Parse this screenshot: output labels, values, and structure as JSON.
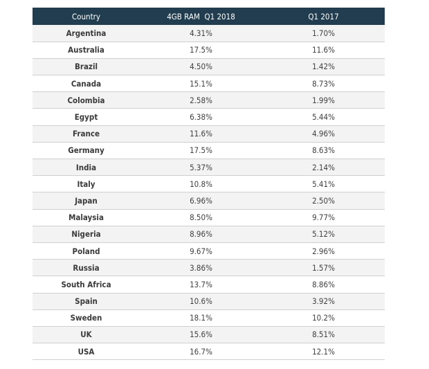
{
  "chart_data": {
    "type": "table",
    "columns": [
      "Country",
      "4GB RAM  Q1 2018",
      "Q1 2017"
    ],
    "rows": [
      [
        "Argentina",
        "4.31%",
        "1.70%"
      ],
      [
        "Australia",
        "17.5%",
        "11.6%"
      ],
      [
        "Brazil",
        "4.50%",
        "1.42%"
      ],
      [
        "Canada",
        "15.1%",
        "8.73%"
      ],
      [
        "Colombia",
        "2.58%",
        "1.99%"
      ],
      [
        "Egypt",
        "6.38%",
        "5.44%"
      ],
      [
        "France",
        "11.6%",
        "4.96%"
      ],
      [
        "Germany",
        "17.5%",
        "8.63%"
      ],
      [
        "India",
        "5.37%",
        "2.14%"
      ],
      [
        "Italy",
        "10.8%",
        "5.41%"
      ],
      [
        "Japan",
        "6.96%",
        "2.50%"
      ],
      [
        "Malaysia",
        "8.50%",
        "9.77%"
      ],
      [
        "Nigeria",
        "8.96%",
        "5.12%"
      ],
      [
        "Poland",
        "9.67%",
        "2.96%"
      ],
      [
        "Russia",
        "3.86%",
        "1.57%"
      ],
      [
        "South Africa",
        "13.7%",
        "8.86%"
      ],
      [
        "Spain",
        "10.6%",
        "3.92%"
      ],
      [
        "Sweden",
        "18.1%",
        "10.2%"
      ],
      [
        "UK",
        "15.6%",
        "8.51%"
      ],
      [
        "USA",
        "16.7%",
        "12.1%"
      ]
    ]
  },
  "colors": {
    "header_background": "#213d4f",
    "header_text": "#ffffff",
    "stripe_row": "#f3f3f3",
    "plain_row": "#ffffff",
    "row_divider": "#cfcfcf",
    "cell_text": "#3f3f3f"
  }
}
